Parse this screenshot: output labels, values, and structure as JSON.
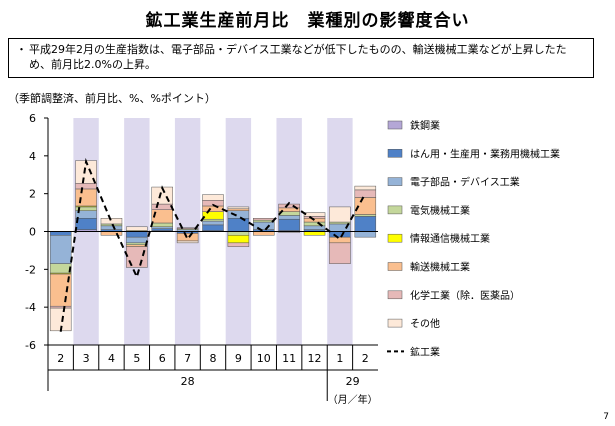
{
  "title": "鉱工業生産前月比　業種別の影響度合い",
  "summary": "平成29年2月の生産指数は、電子部品・デバイス工業などが低下したものの、輸送機械工業などが上昇したため、前月比2.0%の上昇。",
  "bullet": "・",
  "unit_label": "（季節調整済、前月比、%、%ポイント）",
  "page_number": "7",
  "chart_data": {
    "type": "bar",
    "stacked": true,
    "categories": [
      "2",
      "3",
      "4",
      "5",
      "6",
      "7",
      "8",
      "9",
      "10",
      "11",
      "12",
      "1",
      "2"
    ],
    "year_labels": [
      {
        "label": "28",
        "span": [
          0,
          10
        ]
      },
      {
        "label": "29",
        "span": [
          11,
          12
        ]
      }
    ],
    "period_unit_label": "（月／年）",
    "ylim": [
      -6,
      6
    ],
    "yticks": [
      6,
      4,
      2,
      0,
      -2,
      -4,
      -6
    ],
    "shaded_categories": [
      1,
      3,
      5,
      7,
      9,
      11
    ],
    "shade_color": "#ddd9ee",
    "series": [
      {
        "name": "鉄鋼業",
        "color": "#b4a7d6",
        "values": [
          0.0,
          0.1,
          0.0,
          0.0,
          0.05,
          0.0,
          0.05,
          0.0,
          0.0,
          0.05,
          0.0,
          0.0,
          0.0
        ]
      },
      {
        "name": "はん用・生産用・業務用機械工業",
        "color": "#4f81c7",
        "values": [
          -0.2,
          0.6,
          0.1,
          -0.3,
          0.1,
          -0.1,
          0.3,
          0.7,
          0.1,
          0.6,
          0.1,
          -0.3,
          0.8
        ]
      },
      {
        "name": "電子部品・デバイス工業",
        "color": "#95b3d7",
        "values": [
          -1.5,
          0.4,
          0.2,
          -0.3,
          0.1,
          0.1,
          0.2,
          0.4,
          0.4,
          0.2,
          0.2,
          0.4,
          -0.3
        ]
      },
      {
        "name": "電気機械工業",
        "color": "#c4d79b",
        "values": [
          -0.5,
          0.2,
          0.1,
          -0.1,
          0.2,
          0.05,
          0.1,
          -0.2,
          0.1,
          0.2,
          0.2,
          0.1,
          0.1
        ]
      },
      {
        "name": "情報通信機械工業",
        "color": "#ffff00",
        "values": [
          -0.05,
          0.05,
          0.0,
          0.05,
          0.0,
          0.0,
          0.4,
          -0.4,
          0.0,
          0.0,
          -0.2,
          0.0,
          0.0
        ]
      },
      {
        "name": "輸送機械工業",
        "color": "#fabf8f",
        "values": [
          -1.7,
          0.9,
          -0.2,
          -0.1,
          0.7,
          -0.4,
          0.3,
          0.1,
          -0.2,
          0.2,
          0.2,
          -0.3,
          0.9
        ]
      },
      {
        "name": "化学工業（除．医薬品）",
        "color": "#e6b9b8",
        "values": [
          -0.1,
          0.3,
          0.0,
          -1.1,
          0.3,
          0.05,
          0.3,
          -0.2,
          0.1,
          0.2,
          0.1,
          -1.1,
          0.4
        ]
      },
      {
        "name": "その他",
        "color": "#fde9d9",
        "values": [
          -1.2,
          1.2,
          0.3,
          0.2,
          0.9,
          -0.1,
          0.3,
          0.1,
          0.0,
          -0.05,
          0.2,
          0.8,
          0.2
        ]
      }
    ],
    "line": {
      "name": "鉱工業",
      "color": "#000000",
      "values": [
        -5.3,
        3.7,
        0.5,
        -2.4,
        2.3,
        -0.4,
        1.4,
        0.8,
        0.0,
        1.5,
        0.6,
        -0.4,
        2.0
      ]
    }
  }
}
